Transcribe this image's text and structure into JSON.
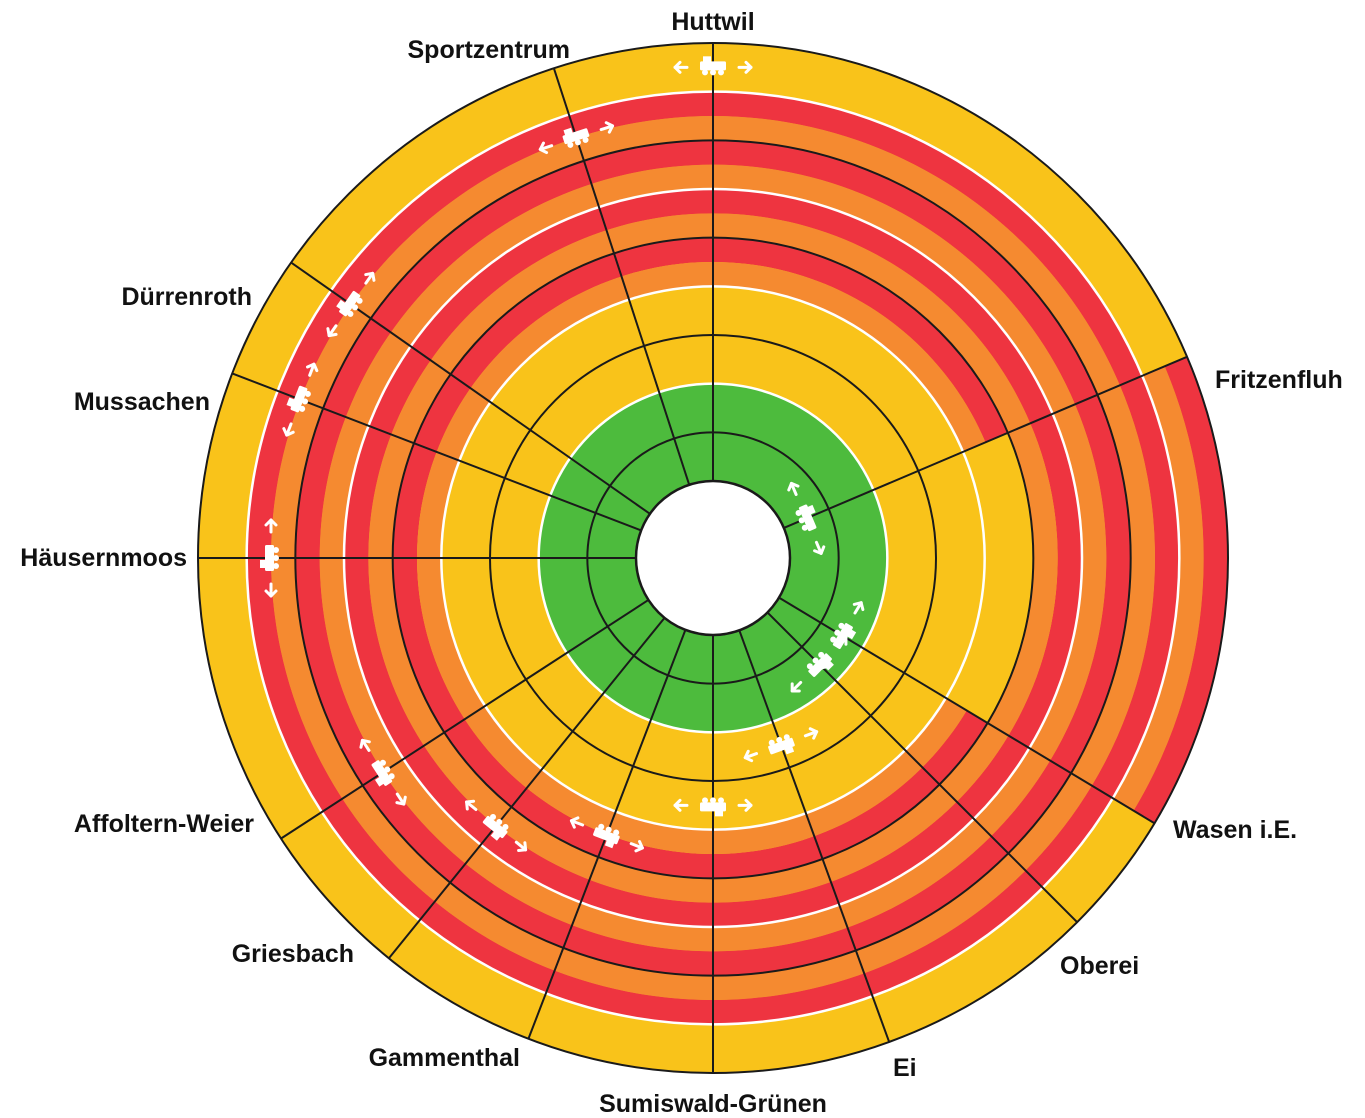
{
  "diagram": {
    "stations": [
      {
        "id": "huttwil",
        "name": "Huttwil"
      },
      {
        "id": "sportzentrum",
        "name": "Sportzentrum"
      },
      {
        "id": "duerrenroth",
        "name": "Dürrenroth"
      },
      {
        "id": "mussachen",
        "name": "Mussachen"
      },
      {
        "id": "haeusernmoos",
        "name": "Häusernmoos"
      },
      {
        "id": "affoltern-weier",
        "name": "Affoltern-Weier"
      },
      {
        "id": "griesbach",
        "name": "Griesbach"
      },
      {
        "id": "gammenthal",
        "name": "Gammenthal"
      },
      {
        "id": "sumiswald-gruenen",
        "name": "Sumiswald-Grünen"
      },
      {
        "id": "ei",
        "name": "Ei"
      },
      {
        "id": "oberei",
        "name": "Oberei"
      },
      {
        "id": "wasen",
        "name": "Wasen i.E."
      },
      {
        "id": "fritzenfluh",
        "name": "Fritzenfluh"
      }
    ],
    "colors": {
      "green": "#4dbb3d",
      "yellow": "#f9c31a",
      "orange": "#f58a30",
      "red": "#ee3440",
      "separator": "#1a1a1a",
      "lane_line": "#ffffff"
    },
    "rings": [
      {
        "segments": [
          {
            "from": "fritzenfluh",
            "to": "huttwil",
            "color": "green"
          },
          {
            "from": "huttwil",
            "to": "sportzentrum",
            "color": "green"
          },
          {
            "from": "sportzentrum",
            "to": "duerrenroth",
            "color": "green"
          },
          {
            "from": "duerrenroth",
            "to": "mussachen",
            "color": "yellow"
          },
          {
            "from": "mussachen",
            "to": "haeusernmoos",
            "color": "yellow"
          },
          {
            "from": "haeusernmoos",
            "to": "affoltern-weier",
            "color": "yellow"
          },
          {
            "from": "affoltern-weier",
            "to": "griesbach",
            "color": "orange/red"
          },
          {
            "from": "griesbach",
            "to": "gammenthal",
            "color": "orange/red"
          },
          {
            "from": "gammenthal",
            "to": "sumiswald-gruenen",
            "color": "orange/red"
          },
          {
            "from": "sumiswald-gruenen",
            "to": "ei",
            "color": "orange/red"
          },
          {
            "from": "ei",
            "to": "oberei",
            "color": "orange/red"
          },
          {
            "from": "oberei",
            "to": "wasen",
            "color": "orange/red"
          },
          {
            "from": "wasen",
            "to": "fritzenfluh",
            "color": "yellow"
          }
        ]
      },
      {
        "segments": [
          {
            "from": "fritzenfluh",
            "to": "huttwil",
            "color": "green"
          },
          {
            "from": "huttwil",
            "to": "sportzentrum",
            "color": "green"
          },
          {
            "from": "sportzentrum",
            "to": "duerrenroth",
            "color": "green"
          },
          {
            "from": "duerrenroth",
            "to": "mussachen",
            "color": "green"
          },
          {
            "from": "mussachen",
            "to": "haeusernmoos",
            "color": "green"
          },
          {
            "from": "haeusernmoos",
            "to": "affoltern-weier",
            "color": "green"
          },
          {
            "from": "affoltern-weier",
            "to": "griesbach",
            "color": "yellow"
          },
          {
            "from": "griesbach",
            "to": "gammenthal",
            "color": "orange/red"
          },
          {
            "from": "gammenthal",
            "to": "sumiswald-gruenen",
            "color": "orange/red"
          },
          {
            "from": "sumiswald-gruenen",
            "to": "ei",
            "color": "orange/red"
          },
          {
            "from": "ei",
            "to": "oberei",
            "color": "orange/red"
          },
          {
            "from": "oberei",
            "to": "wasen",
            "color": "orange/red"
          },
          {
            "from": "wasen",
            "to": "fritzenfluh",
            "color": "orange/red"
          }
        ]
      },
      {
        "segments": [
          {
            "from": "fritzenfluh",
            "to": "huttwil",
            "color": "yellow"
          },
          {
            "from": "huttwil",
            "to": "sportzentrum",
            "color": "green"
          },
          {
            "from": "sportzentrum",
            "to": "duerrenroth",
            "color": "green"
          },
          {
            "from": "duerrenroth",
            "to": "mussachen",
            "color": "green"
          },
          {
            "from": "mussachen",
            "to": "haeusernmoos",
            "color": "green"
          },
          {
            "from": "haeusernmoos",
            "to": "affoltern-weier",
            "color": "green"
          },
          {
            "from": "affoltern-weier",
            "to": "griesbach",
            "color": "green"
          },
          {
            "from": "griesbach",
            "to": "gammenthal",
            "color": "yellow"
          },
          {
            "from": "gammenthal",
            "to": "sumiswald-gruenen",
            "color": "yellow"
          },
          {
            "from": "sumiswald-gruenen",
            "to": "ei",
            "color": "orange/red"
          },
          {
            "from": "ei",
            "to": "oberei",
            "color": "orange/red"
          },
          {
            "from": "oberei",
            "to": "wasen",
            "color": "orange/red"
          },
          {
            "from": "wasen",
            "to": "fritzenfluh",
            "color": "orange/red"
          }
        ]
      },
      {
        "segments": [
          {
            "from": "fritzenfluh",
            "to": "huttwil",
            "color": "orange/red"
          },
          {
            "from": "huttwil",
            "to": "sportzentrum",
            "color": "yellow"
          },
          {
            "from": "sportzentrum",
            "to": "duerrenroth",
            "color": "yellow"
          },
          {
            "from": "duerrenroth",
            "to": "mussachen",
            "color": "green"
          },
          {
            "from": "mussachen",
            "to": "haeusernmoos",
            "color": "green"
          },
          {
            "from": "haeusernmoos",
            "to": "affoltern-weier",
            "color": "green"
          },
          {
            "from": "affoltern-weier",
            "to": "griesbach",
            "color": "green"
          },
          {
            "from": "griesbach",
            "to": "gammenthal",
            "color": "green"
          },
          {
            "from": "gammenthal",
            "to": "sumiswald-gruenen",
            "color": "yellow"
          },
          {
            "from": "sumiswald-gruenen",
            "to": "ei",
            "color": "yellow"
          },
          {
            "from": "ei",
            "to": "oberei",
            "color": "yellow"
          },
          {
            "from": "oberei",
            "to": "wasen",
            "color": "orange/red"
          },
          {
            "from": "wasen",
            "to": "fritzenfluh",
            "color": "orange/red"
          }
        ]
      },
      {
        "segments": [
          {
            "from": "fritzenfluh",
            "to": "huttwil",
            "color": "orange/red"
          },
          {
            "from": "huttwil",
            "to": "sportzentrum",
            "color": "orange/red"
          },
          {
            "from": "sportzentrum",
            "to": "duerrenroth",
            "color": "yellow"
          },
          {
            "from": "duerrenroth",
            "to": "mussachen",
            "color": "yellow"
          },
          {
            "from": "mussachen",
            "to": "haeusernmoos",
            "color": "green"
          },
          {
            "from": "haeusernmoos",
            "to": "affoltern-weier",
            "color": "green"
          },
          {
            "from": "affoltern-weier",
            "to": "griesbach",
            "color": "green"
          },
          {
            "from": "griesbach",
            "to": "gammenthal",
            "color": "green"
          },
          {
            "from": "gammenthal",
            "to": "sumiswald-gruenen",
            "color": "green"
          },
          {
            "from": "sumiswald-gruenen",
            "to": "ei",
            "color": "yellow"
          },
          {
            "from": "ei",
            "to": "oberei",
            "color": "yellow"
          },
          {
            "from": "oberei",
            "to": "wasen",
            "color": "yellow"
          },
          {
            "from": "wasen",
            "to": "fritzenfluh",
            "color": "orange/red"
          }
        ]
      },
      {
        "segments": [
          {
            "from": "fritzenfluh",
            "to": "huttwil",
            "color": "orange/red"
          },
          {
            "from": "huttwil",
            "to": "sportzentrum",
            "color": "orange/red"
          },
          {
            "from": "sportzentrum",
            "to": "duerrenroth",
            "color": "orange/red"
          },
          {
            "from": "duerrenroth",
            "to": "mussachen",
            "color": "yellow"
          },
          {
            "from": "mussachen",
            "to": "haeusernmoos",
            "color": "yellow"
          },
          {
            "from": "haeusernmoos",
            "to": "affoltern-weier",
            "color": "green"
          },
          {
            "from": "affoltern-weier",
            "to": "griesbach",
            "color": "green"
          },
          {
            "from": "griesbach",
            "to": "gammenthal",
            "color": "green"
          },
          {
            "from": "gammenthal",
            "to": "sumiswald-gruenen",
            "color": "green"
          },
          {
            "from": "sumiswald-gruenen",
            "to": "ei",
            "color": "green"
          },
          {
            "from": "ei",
            "to": "oberei",
            "color": "yellow"
          },
          {
            "from": "oberei",
            "to": "wasen",
            "color": "yellow"
          },
          {
            "from": "wasen",
            "to": "fritzenfluh",
            "color": "yellow"
          }
        ]
      },
      {
        "segments": [
          {
            "from": "fritzenfluh",
            "to": "huttwil",
            "color": "orange/red"
          },
          {
            "from": "huttwil",
            "to": "sportzentrum",
            "color": "orange/red"
          },
          {
            "from": "sportzentrum",
            "to": "duerrenroth",
            "color": "orange/red"
          },
          {
            "from": "duerrenroth",
            "to": "mussachen",
            "color": "orange/red"
          },
          {
            "from": "mussachen",
            "to": "haeusernmoos",
            "color": "yellow"
          },
          {
            "from": "haeusernmoos",
            "to": "affoltern-weier",
            "color": "yellow"
          },
          {
            "from": "affoltern-weier",
            "to": "griesbach",
            "color": "green"
          },
          {
            "from": "griesbach",
            "to": "gammenthal",
            "color": "green"
          },
          {
            "from": "gammenthal",
            "to": "sumiswald-gruenen",
            "color": "green"
          },
          {
            "from": "sumiswald-gruenen",
            "to": "ei",
            "color": "green"
          },
          {
            "from": "ei",
            "to": "oberei",
            "color": "green"
          },
          {
            "from": "oberei",
            "to": "wasen",
            "color": "yellow"
          },
          {
            "from": "wasen",
            "to": "fritzenfluh",
            "color": "yellow"
          }
        ]
      },
      {
        "segments": [
          {
            "from": "fritzenfluh",
            "to": "huttwil",
            "color": "yellow"
          },
          {
            "from": "huttwil",
            "to": "sportzentrum",
            "color": "orange/red"
          },
          {
            "from": "sportzentrum",
            "to": "duerrenroth",
            "color": "orange/red"
          },
          {
            "from": "duerrenroth",
            "to": "mussachen",
            "color": "orange/red"
          },
          {
            "from": "mussachen",
            "to": "haeusernmoos",
            "color": "orange/red"
          },
          {
            "from": "haeusernmoos",
            "to": "affoltern-weier",
            "color": "orange/red"
          },
          {
            "from": "affoltern-weier",
            "to": "griesbach",
            "color": "yellow"
          },
          {
            "from": "griesbach",
            "to": "gammenthal",
            "color": "yellow"
          },
          {
            "from": "gammenthal",
            "to": "sumiswald-gruenen",
            "color": "yellow"
          },
          {
            "from": "sumiswald-gruenen",
            "to": "ei",
            "color": "green"
          },
          {
            "from": "ei",
            "to": "oberei",
            "color": "green"
          },
          {
            "from": "oberei",
            "to": "wasen",
            "color": "green"
          },
          {
            "from": "wasen",
            "to": "fritzenfluh",
            "color": "green"
          }
        ]
      },
      {
        "segments": [
          {
            "from": "fritzenfluh",
            "to": "huttwil",
            "color": "green"
          },
          {
            "from": "huttwil",
            "to": "sportzentrum",
            "color": "yellow"
          },
          {
            "from": "sportzentrum",
            "to": "duerrenroth",
            "color": "orange/red"
          },
          {
            "from": "duerrenroth",
            "to": "mussachen",
            "color": "orange/red"
          },
          {
            "from": "mussachen",
            "to": "haeusernmoos",
            "color": "orange/red"
          },
          {
            "from": "haeusernmoos",
            "to": "affoltern-weier",
            "color": "orange/red"
          },
          {
            "from": "affoltern-weier",
            "to": "griesbach",
            "color": "orange/red"
          },
          {
            "from": "griesbach",
            "to": "gammenthal",
            "color": "orange/red"
          },
          {
            "from": "gammenthal",
            "to": "sumiswald-gruenen",
            "color": "yellow"
          },
          {
            "from": "sumiswald-gruenen",
            "to": "ei",
            "color": "yellow"
          },
          {
            "from": "ei",
            "to": "oberei",
            "color": "green"
          },
          {
            "from": "oberei",
            "to": "wasen",
            "color": "green"
          },
          {
            "from": "wasen",
            "to": "fritzenfluh",
            "color": "green"
          }
        ]
      }
    ],
    "trains": [
      {
        "ring": 1,
        "at": "huttwil"
      },
      {
        "ring": 2,
        "at": "sportzentrum"
      },
      {
        "ring": 2,
        "at": "duerrenroth"
      },
      {
        "ring": 2,
        "at": "mussachen"
      },
      {
        "ring": 2,
        "at": "haeusernmoos"
      },
      {
        "ring": 3,
        "at": "affoltern-weier"
      },
      {
        "ring": 4,
        "at": "griesbach"
      },
      {
        "ring": 5,
        "at": "gammenthal"
      },
      {
        "ring": 6,
        "at": "sumiswald-gruenen"
      },
      {
        "ring": 7,
        "at": "ei"
      },
      {
        "ring": 8,
        "at": "oberei"
      },
      {
        "ring": 8,
        "at": "wasen"
      },
      {
        "ring": 9,
        "at": "fritzenfluh"
      }
    ]
  }
}
